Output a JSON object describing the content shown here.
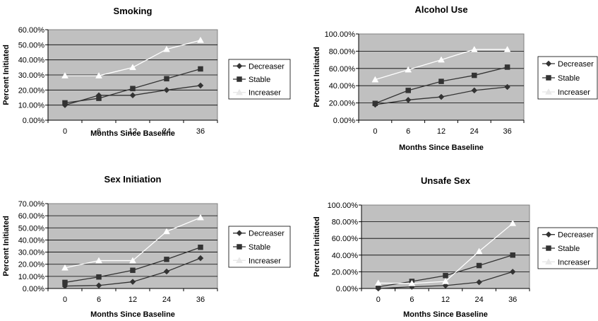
{
  "chart_data": [
    {
      "type": "line",
      "title": "Smoking",
      "xlabel": "Months Since Baseline",
      "ylabel": "Percent Initiated",
      "categories": [
        "0",
        "6",
        "12",
        "24",
        "36"
      ],
      "ylim": [
        0,
        0.6
      ],
      "yticks": [
        "0.00%",
        "10.00%",
        "20.00%",
        "30.00%",
        "40.00%",
        "50.00%",
        "60.00%"
      ],
      "grid": true,
      "legend": "right",
      "series": [
        {
          "name": "Decreaser",
          "marker": "diamond",
          "color": "#333333",
          "values": [
            0.1,
            0.165,
            0.165,
            0.2,
            0.23
          ]
        },
        {
          "name": "Stable",
          "marker": "square",
          "color": "#333333",
          "values": [
            0.115,
            0.145,
            0.21,
            0.275,
            0.34
          ]
        },
        {
          "name": "Increaser",
          "marker": "triangle",
          "color": "#ffffff",
          "values": [
            0.295,
            0.295,
            0.35,
            0.47,
            0.53
          ]
        }
      ]
    },
    {
      "type": "line",
      "title": "Alcohol Use",
      "xlabel": "Months Since Baseline",
      "ylabel": "Percent Initiated",
      "categories": [
        "0",
        "6",
        "12",
        "24",
        "36"
      ],
      "ylim": [
        0,
        1.0
      ],
      "yticks": [
        "0.00%",
        "20.00%",
        "40.00%",
        "60.00%",
        "80.00%",
        "100.00%"
      ],
      "grid": true,
      "legend": "right",
      "series": [
        {
          "name": "Decreaser",
          "marker": "diamond",
          "color": "#333333",
          "values": [
            0.18,
            0.235,
            0.27,
            0.345,
            0.385
          ]
        },
        {
          "name": "Stable",
          "marker": "square",
          "color": "#333333",
          "values": [
            0.195,
            0.345,
            0.45,
            0.52,
            0.615
          ]
        },
        {
          "name": "Increaser",
          "marker": "triangle",
          "color": "#ffffff",
          "values": [
            0.47,
            0.585,
            0.7,
            0.82,
            0.82
          ]
        }
      ]
    },
    {
      "type": "line",
      "title": "Sex Initiation",
      "xlabel": "Months Since Baseline",
      "ylabel": "Percent Initiated",
      "categories": [
        "0",
        "6",
        "12",
        "24",
        "36"
      ],
      "ylim": [
        0,
        0.7
      ],
      "yticks": [
        "0.00%",
        "10.00%",
        "20.00%",
        "30.00%",
        "40.00%",
        "50.00%",
        "60.00%",
        "70.00%"
      ],
      "grid": true,
      "legend": "right",
      "series": [
        {
          "name": "Decreaser",
          "marker": "diamond",
          "color": "#333333",
          "values": [
            0.02,
            0.025,
            0.055,
            0.14,
            0.25
          ]
        },
        {
          "name": "Stable",
          "marker": "square",
          "color": "#333333",
          "values": [
            0.05,
            0.095,
            0.15,
            0.24,
            0.34
          ]
        },
        {
          "name": "Increaser",
          "marker": "triangle",
          "color": "#ffffff",
          "values": [
            0.17,
            0.23,
            0.23,
            0.47,
            0.585
          ]
        }
      ]
    },
    {
      "type": "line",
      "title": "Unsafe Sex",
      "xlabel": "Months Since Baseline",
      "ylabel": "Percent Initiated",
      "categories": [
        "0",
        "6",
        "12",
        "24",
        "36"
      ],
      "ylim": [
        0,
        1.0
      ],
      "yticks": [
        "0.00%",
        "20.00%",
        "40.00%",
        "60.00%",
        "80.00%",
        "100.00%"
      ],
      "grid": true,
      "legend": "right",
      "series": [
        {
          "name": "Decreaser",
          "marker": "diamond",
          "color": "#333333",
          "values": [
            0.0,
            0.02,
            0.035,
            0.075,
            0.2
          ]
        },
        {
          "name": "Stable",
          "marker": "square",
          "color": "#333333",
          "values": [
            0.02,
            0.085,
            0.155,
            0.275,
            0.4
          ]
        },
        {
          "name": "Increaser",
          "marker": "triangle",
          "color": "#ffffff",
          "values": [
            0.065,
            0.06,
            0.085,
            0.445,
            0.78
          ]
        }
      ]
    }
  ]
}
